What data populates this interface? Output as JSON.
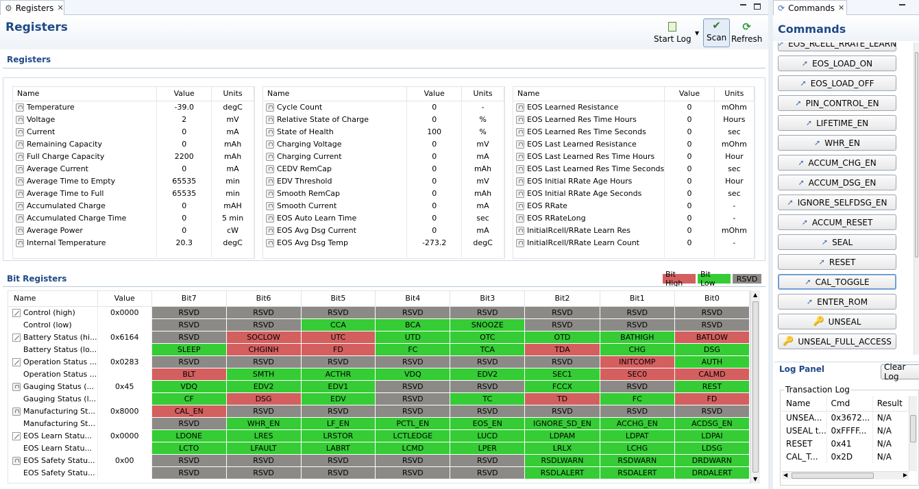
{
  "left_tab": {
    "label": "Registers"
  },
  "right_tab": {
    "label": "Commands"
  },
  "page_title": "Registers",
  "toolbar": {
    "start_log": "Start Log",
    "scan": "Scan",
    "refresh": "Refresh"
  },
  "registers_section": "Registers",
  "bit_registers_section": "Bit Registers",
  "reg_headers": {
    "name": "Name",
    "value": "Value",
    "units": "Units"
  },
  "reg_tables": [
    [
      {
        "name": "Temperature",
        "value": "-39.0",
        "units": "degC"
      },
      {
        "name": "Voltage",
        "value": "2",
        "units": "mV"
      },
      {
        "name": "Current",
        "value": "0",
        "units": "mA"
      },
      {
        "name": "Remaining Capacity",
        "value": "0",
        "units": "mAh"
      },
      {
        "name": "Full Charge Capacity",
        "value": "2200",
        "units": "mAh"
      },
      {
        "name": "Average Current",
        "value": "0",
        "units": "mA"
      },
      {
        "name": "Average Time to Empty",
        "value": "65535",
        "units": "min"
      },
      {
        "name": "Average Time to Full",
        "value": "65535",
        "units": "min"
      },
      {
        "name": "Accumulated Charge",
        "value": "0",
        "units": "mAH"
      },
      {
        "name": "Accumulated Charge Time",
        "value": "0",
        "units": "5 min"
      },
      {
        "name": "Average Power",
        "value": "0",
        "units": "cW"
      },
      {
        "name": "Internal Temperature",
        "value": "20.3",
        "units": "degC"
      }
    ],
    [
      {
        "name": "Cycle Count",
        "value": "0",
        "units": "-"
      },
      {
        "name": "Relative State of Charge",
        "value": "0",
        "units": "%"
      },
      {
        "name": "State of Health",
        "value": "100",
        "units": "%"
      },
      {
        "name": "Charging Voltage",
        "value": "0",
        "units": "mV"
      },
      {
        "name": "Charging Current",
        "value": "0",
        "units": "mA"
      },
      {
        "name": "CEDV RemCap",
        "value": "0",
        "units": "mAh"
      },
      {
        "name": "EDV Threshold",
        "value": "0",
        "units": "mV"
      },
      {
        "name": "Smooth RemCap",
        "value": "0",
        "units": "mAh"
      },
      {
        "name": "Smooth Current",
        "value": "0",
        "units": "mA"
      },
      {
        "name": "EOS Auto Learn Time",
        "value": "0",
        "units": "sec"
      },
      {
        "name": "EOS Avg Dsg Current",
        "value": "0",
        "units": "mA"
      },
      {
        "name": "EOS Avg Dsg Temp",
        "value": "-273.2",
        "units": "degC"
      }
    ],
    [
      {
        "name": "EOS Learned Resistance",
        "value": "0",
        "units": "mOhm"
      },
      {
        "name": "EOS Learned Res Time Hours",
        "value": "0",
        "units": "Hours"
      },
      {
        "name": "EOS Learned Res Time Seconds",
        "value": "0",
        "units": "sec"
      },
      {
        "name": "EOS Last Learned Resistance",
        "value": "0",
        "units": "mOhm"
      },
      {
        "name": "EOS Last Learned Res Time Hours",
        "value": "0",
        "units": "Hour"
      },
      {
        "name": "EOS Last Learned Res Time Seconds",
        "value": "0",
        "units": "sec"
      },
      {
        "name": "EOS Initial RRate Age Hours",
        "value": "0",
        "units": "Hour"
      },
      {
        "name": "EOS Initial RRate Age Seconds",
        "value": "0",
        "units": "sec"
      },
      {
        "name": "EOS RRate",
        "value": "0",
        "units": "-"
      },
      {
        "name": "EOS RRateLong",
        "value": "0",
        "units": "-"
      },
      {
        "name": "InitialRcell/RRate Learn Res",
        "value": "0",
        "units": "mOhm"
      },
      {
        "name": "InitialRcell/RRate Learn Count",
        "value": "0",
        "units": "-"
      }
    ]
  ],
  "legend": {
    "high": "Bit High",
    "low": "Bit Low",
    "rsvd": "RSVD"
  },
  "colors": {
    "high": "#d35f5f",
    "low": "#35cc35",
    "rsvd": "#8c8a86",
    "accent": "#1f4a87"
  },
  "bit_headers": [
    "Name",
    "Value",
    "Bit7",
    "Bit6",
    "Bit5",
    "Bit4",
    "Bit3",
    "Bit2",
    "Bit1",
    "Bit0"
  ],
  "bit_rows": [
    {
      "icon": "pencil",
      "name": "Control (high)",
      "value": "0x0000",
      "bits": [
        [
          "RSVD",
          "r"
        ],
        [
          "RSVD",
          "r"
        ],
        [
          "RSVD",
          "r"
        ],
        [
          "RSVD",
          "r"
        ],
        [
          "RSVD",
          "r"
        ],
        [
          "RSVD",
          "r"
        ],
        [
          "RSVD",
          "r"
        ],
        [
          "RSVD",
          "r"
        ]
      ]
    },
    {
      "icon": "",
      "name": "Control (low)",
      "value": "",
      "bits": [
        [
          "RSVD",
          "r"
        ],
        [
          "RSVD",
          "r"
        ],
        [
          "CCA",
          "l"
        ],
        [
          "BCA",
          "l"
        ],
        [
          "SNOOZE",
          "l"
        ],
        [
          "RSVD",
          "r"
        ],
        [
          "RSVD",
          "r"
        ],
        [
          "RSVD",
          "r"
        ]
      ]
    },
    {
      "icon": "pencil",
      "name": "Battery Status (hi...",
      "value": "0x6164",
      "bits": [
        [
          "RSVD",
          "r"
        ],
        [
          "SOCLOW",
          "h"
        ],
        [
          "UTC",
          "h"
        ],
        [
          "UTD",
          "l"
        ],
        [
          "OTC",
          "l"
        ],
        [
          "OTD",
          "l"
        ],
        [
          "BATHIGH",
          "l"
        ],
        [
          "BATLOW",
          "h"
        ]
      ]
    },
    {
      "icon": "",
      "name": "Battery Status (lo...",
      "value": "",
      "bits": [
        [
          "SLEEP",
          "l"
        ],
        [
          "CHGINH",
          "h"
        ],
        [
          "FD",
          "h"
        ],
        [
          "FC",
          "l"
        ],
        [
          "TCA",
          "l"
        ],
        [
          "TDA",
          "h"
        ],
        [
          "CHG",
          "l"
        ],
        [
          "DSG",
          "l"
        ]
      ]
    },
    {
      "icon": "pencil",
      "name": "Operation Status ...",
      "value": "0x0283",
      "bits": [
        [
          "RSVD",
          "r"
        ],
        [
          "RSVD",
          "r"
        ],
        [
          "RSVD",
          "r"
        ],
        [
          "RSVD",
          "r"
        ],
        [
          "RSVD",
          "r"
        ],
        [
          "RSVD",
          "r"
        ],
        [
          "INITCOMP",
          "h"
        ],
        [
          "AUTH",
          "l"
        ]
      ]
    },
    {
      "icon": "",
      "name": "Operation Status ...",
      "value": "",
      "bits": [
        [
          "BLT",
          "h"
        ],
        [
          "SMTH",
          "l"
        ],
        [
          "ACTHR",
          "l"
        ],
        [
          "VDQ",
          "l"
        ],
        [
          "EDV2",
          "l"
        ],
        [
          "SEC1",
          "l"
        ],
        [
          "SEC0",
          "h"
        ],
        [
          "CALMD",
          "h"
        ]
      ]
    },
    {
      "icon": "lock",
      "name": "Gauging Status (...",
      "value": "0x45",
      "bits": [
        [
          "VDQ",
          "l"
        ],
        [
          "EDV2",
          "l"
        ],
        [
          "EDV1",
          "l"
        ],
        [
          "RSVD",
          "r"
        ],
        [
          "RSVD",
          "r"
        ],
        [
          "FCCX",
          "l"
        ],
        [
          "RSVD",
          "r"
        ],
        [
          "REST",
          "l"
        ]
      ]
    },
    {
      "icon": "",
      "name": "Gauging Status (l...",
      "value": "",
      "bits": [
        [
          "CF",
          "l"
        ],
        [
          "DSG",
          "h"
        ],
        [
          "EDV",
          "l"
        ],
        [
          "RSVD",
          "r"
        ],
        [
          "TC",
          "l"
        ],
        [
          "TD",
          "h"
        ],
        [
          "FC",
          "l"
        ],
        [
          "FD",
          "h"
        ]
      ]
    },
    {
      "icon": "lock",
      "name": "Manufacturing St...",
      "value": "0x8000",
      "bits": [
        [
          "CAL_EN",
          "h"
        ],
        [
          "RSVD",
          "r"
        ],
        [
          "RSVD",
          "r"
        ],
        [
          "RSVD",
          "r"
        ],
        [
          "RSVD",
          "r"
        ],
        [
          "RSVD",
          "r"
        ],
        [
          "RSVD",
          "r"
        ],
        [
          "RSVD",
          "r"
        ]
      ]
    },
    {
      "icon": "",
      "name": "Manufacturing St...",
      "value": "",
      "bits": [
        [
          "RSVD",
          "r"
        ],
        [
          "WHR_EN",
          "l"
        ],
        [
          "LF_EN",
          "l"
        ],
        [
          "PCTL_EN",
          "l"
        ],
        [
          "EOS_EN",
          "l"
        ],
        [
          "IGNORE_SD_EN",
          "l"
        ],
        [
          "ACCHG_EN",
          "l"
        ],
        [
          "ACDSG_EN",
          "l"
        ]
      ]
    },
    {
      "icon": "pencil",
      "name": "EOS Learn Statu...",
      "value": "0x0000",
      "bits": [
        [
          "LDONE",
          "l"
        ],
        [
          "LRES",
          "l"
        ],
        [
          "LRSTOR",
          "l"
        ],
        [
          "LCTLEDGE",
          "l"
        ],
        [
          "LUCD",
          "l"
        ],
        [
          "LDPAM",
          "l"
        ],
        [
          "LDPAT",
          "l"
        ],
        [
          "LDPAI",
          "l"
        ]
      ]
    },
    {
      "icon": "",
      "name": "EOS Learn Statu...",
      "value": "",
      "bits": [
        [
          "LCTO",
          "l"
        ],
        [
          "LFAULT",
          "l"
        ],
        [
          "LABRT",
          "l"
        ],
        [
          "LCMD",
          "l"
        ],
        [
          "LPER",
          "l"
        ],
        [
          "LRLX",
          "l"
        ],
        [
          "LCHG",
          "l"
        ],
        [
          "LDSG",
          "l"
        ]
      ]
    },
    {
      "icon": "lock",
      "name": "EOS Safety Statu...",
      "value": "0x00",
      "bits": [
        [
          "RSVD",
          "r"
        ],
        [
          "RSVD",
          "r"
        ],
        [
          "RSVD",
          "r"
        ],
        [
          "RSVD",
          "r"
        ],
        [
          "RSVD",
          "r"
        ],
        [
          "RSDLWARN",
          "l"
        ],
        [
          "RSDWARN",
          "l"
        ],
        [
          "DRDWARN",
          "l"
        ]
      ]
    },
    {
      "icon": "",
      "name": "EOS Safety Statu...",
      "value": "",
      "bits": [
        [
          "RSVD",
          "r"
        ],
        [
          "RSVD",
          "r"
        ],
        [
          "RSVD",
          "r"
        ],
        [
          "RSVD",
          "r"
        ],
        [
          "RSVD",
          "r"
        ],
        [
          "RSDLALERT",
          "l"
        ],
        [
          "RSDALERT",
          "l"
        ],
        [
          "DRDALERT",
          "l"
        ]
      ]
    }
  ],
  "commands_title": "Commands",
  "commands": [
    {
      "label": "EOS_RCELL_RRATE_LEARN",
      "icon": "arrow"
    },
    {
      "label": "EOS_LOAD_ON",
      "icon": "arrow"
    },
    {
      "label": "EOS_LOAD_OFF",
      "icon": "arrow"
    },
    {
      "label": "PIN_CONTROL_EN",
      "icon": "arrow"
    },
    {
      "label": "LIFETIME_EN",
      "icon": "arrow"
    },
    {
      "label": "WHR_EN",
      "icon": "arrow"
    },
    {
      "label": "ACCUM_CHG_EN",
      "icon": "arrow"
    },
    {
      "label": "ACCUM_DSG_EN",
      "icon": "arrow"
    },
    {
      "label": "IGNORE_SELFDSG_EN",
      "icon": "arrow"
    },
    {
      "label": "ACCUM_RESET",
      "icon": "arrow"
    },
    {
      "label": "SEAL",
      "icon": "arrow"
    },
    {
      "label": "RESET",
      "icon": "arrow"
    },
    {
      "label": "CAL_TOGGLE",
      "icon": "arrow"
    },
    {
      "label": "ENTER_ROM",
      "icon": "arrow"
    },
    {
      "label": "UNSEAL",
      "icon": "key"
    },
    {
      "label": "UNSEAL_FULL_ACCESS",
      "icon": "key"
    }
  ],
  "log_panel": {
    "title": "Log Panel",
    "clear_label": "Clear Log",
    "group_label": "Transaction Log",
    "headers": [
      "Name",
      "Cmd",
      "Result"
    ],
    "rows": [
      [
        "UNSEA...",
        "0x3672...",
        "N/A"
      ],
      [
        "USEAL t...",
        "0xFFFF...",
        "N/A"
      ],
      [
        "RESET",
        "0x41",
        "N/A"
      ],
      [
        "CAL_T...",
        "0x2D",
        "N/A"
      ]
    ]
  }
}
